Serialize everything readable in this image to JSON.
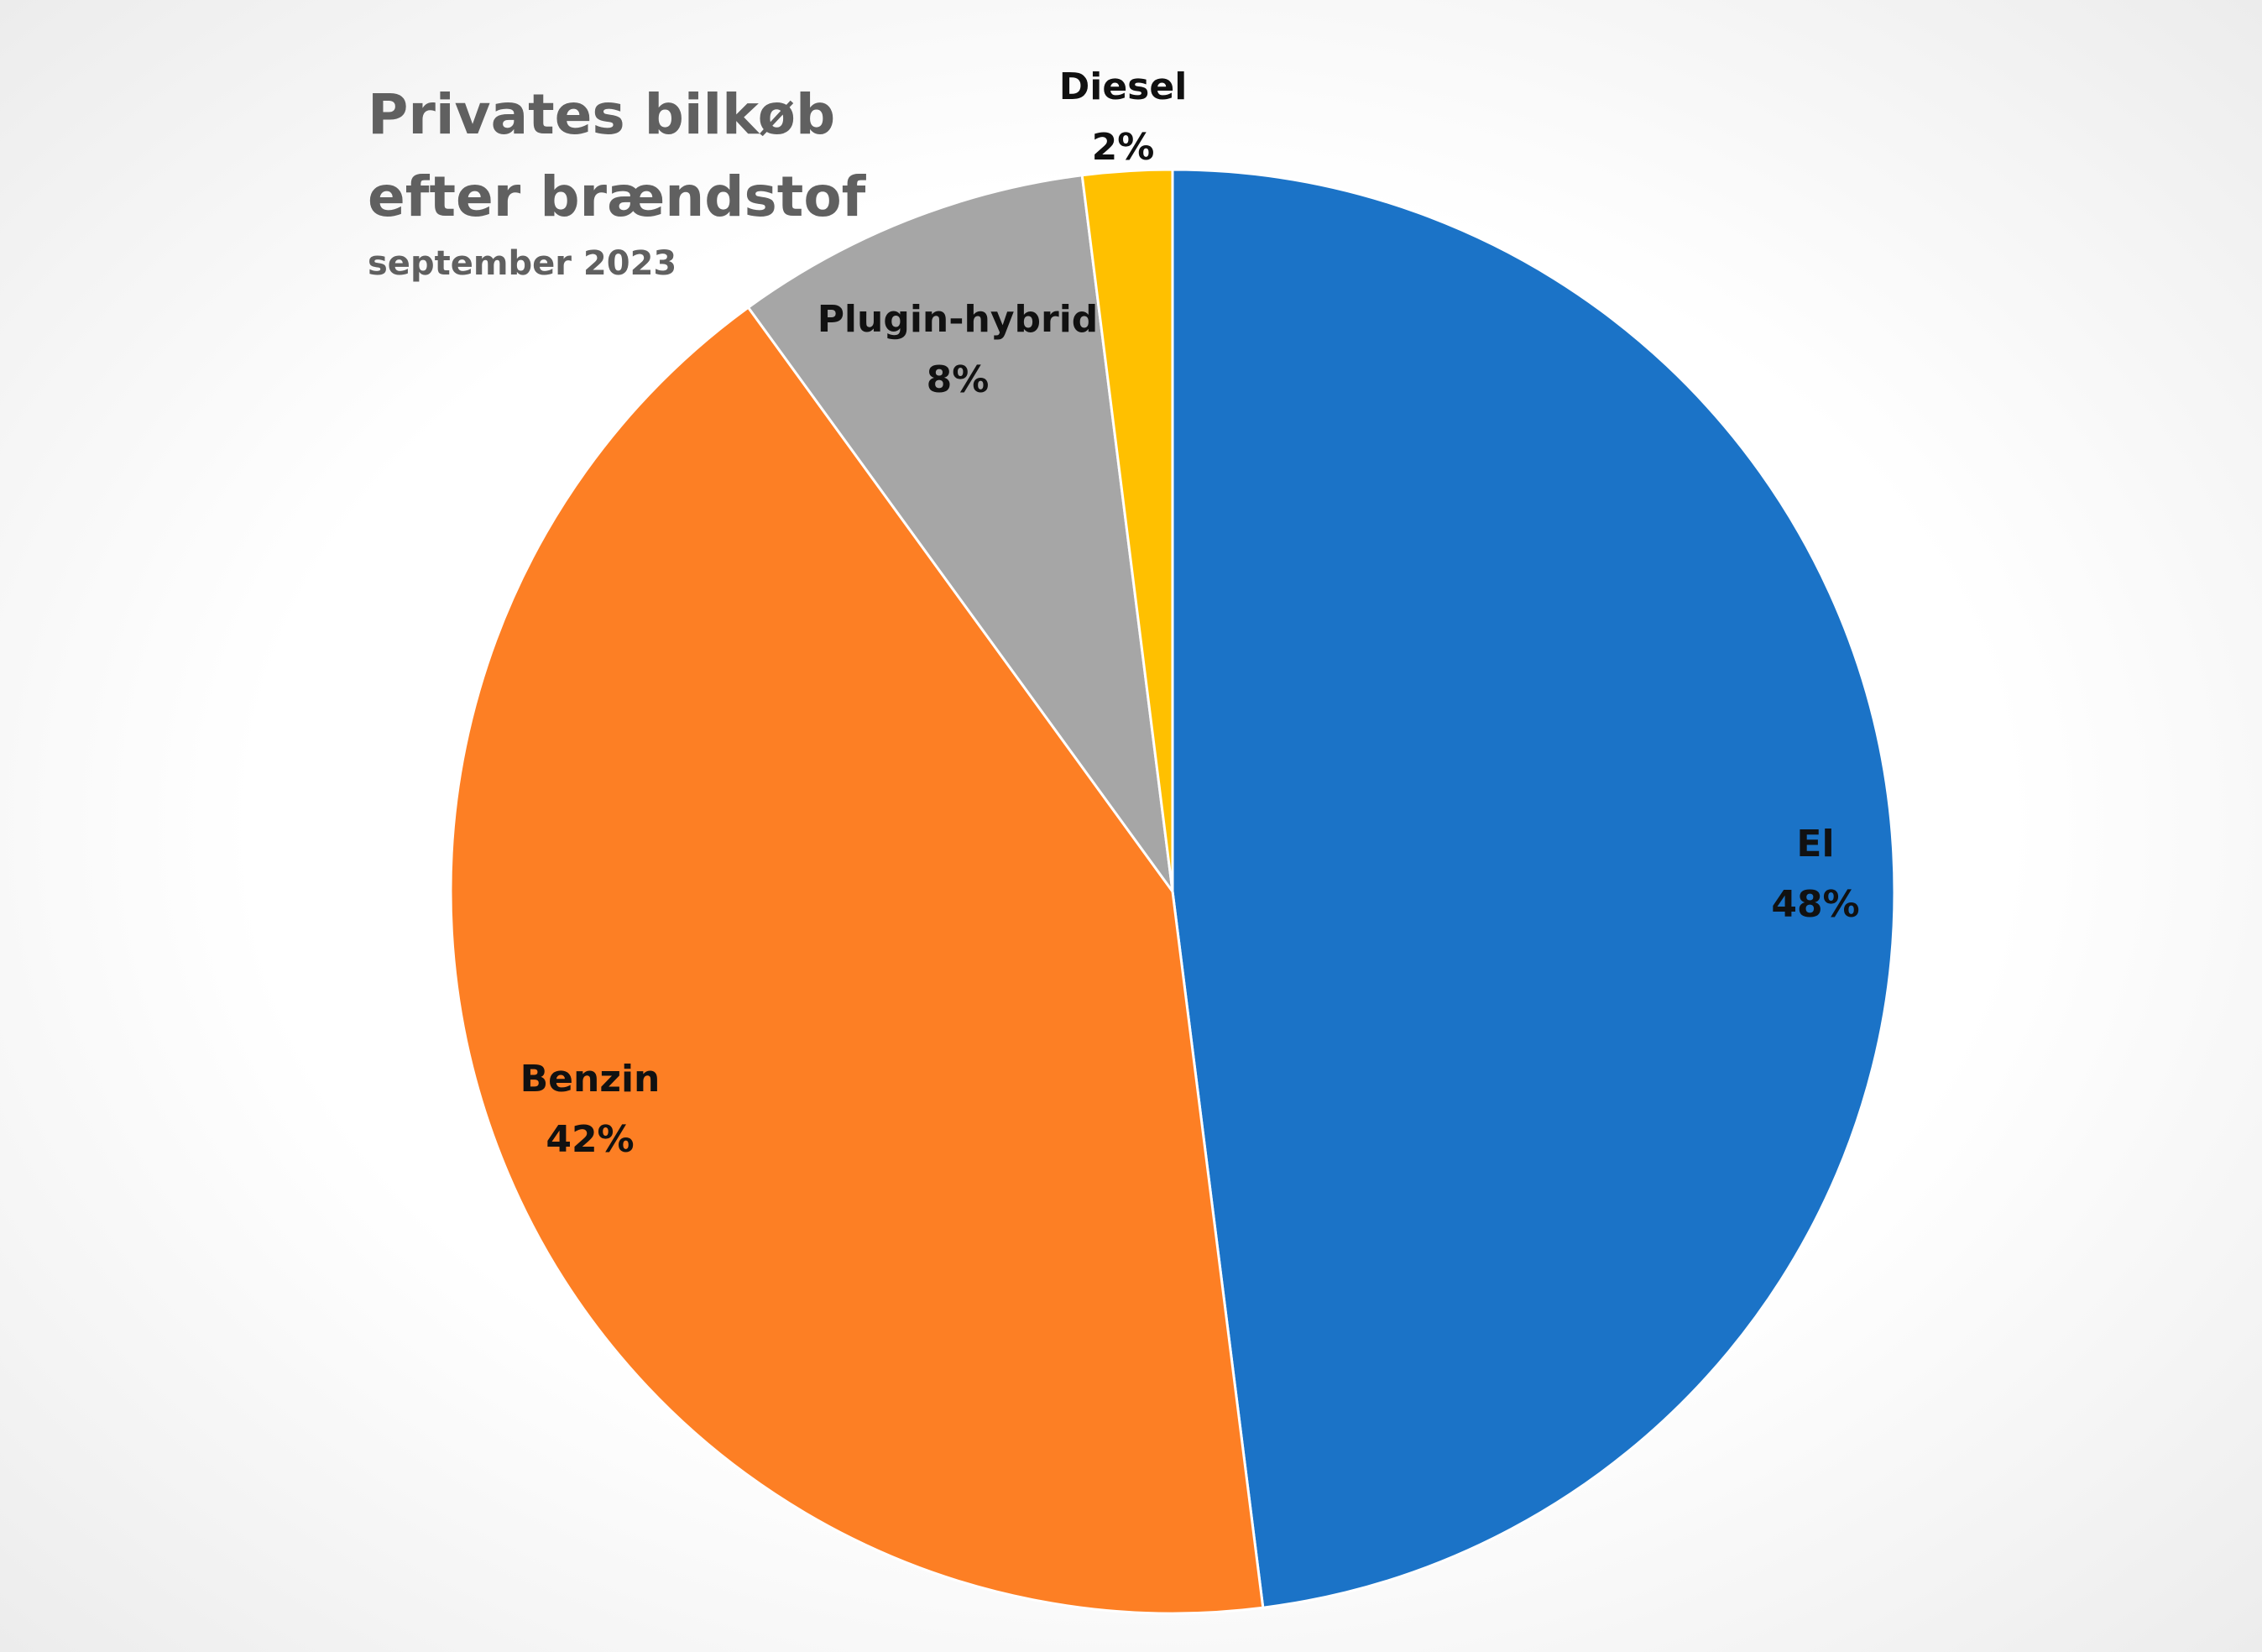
{
  "chart_data": {
    "type": "pie",
    "title_lines": [
      "Privates bilkøb",
      "efter brændstof"
    ],
    "subtitle": "september 2023",
    "slices": [
      {
        "name": "El",
        "value": 48,
        "value_label": "48%",
        "color": "#1b73c7"
      },
      {
        "name": "Benzin",
        "value": 42,
        "value_label": "42%",
        "color": "#fd7f24"
      },
      {
        "name": "Plugin-hybrid",
        "value": 8,
        "value_label": "8%",
        "color": "#a6a6a6"
      },
      {
        "name": "Diesel",
        "value": 2,
        "value_label": "2%",
        "color": "#ffc000"
      }
    ],
    "start_angle_deg": 0,
    "direction": "clockwise",
    "legend": "none",
    "data_labels": "category and percentage"
  }
}
